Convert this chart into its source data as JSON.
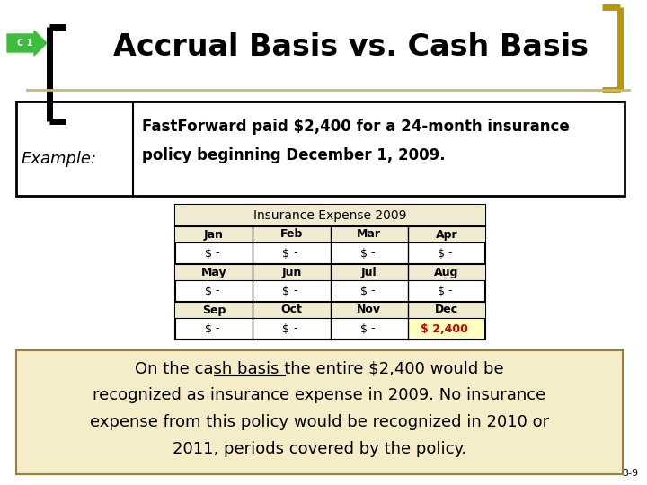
{
  "title": "Accrual Basis vs. Cash Basis",
  "c1_label": "C 1",
  "slide_number": "3-9",
  "example_label": "Example:",
  "example_text_line1": "FastForward paid $2,400 for a 24-month insurance",
  "example_text_line2": "policy beginning December 1, 2009.",
  "table_header": "Insurance Expense 2009",
  "months_row1": [
    "Jan",
    "Feb",
    "Mar",
    "Apr"
  ],
  "months_row2": [
    "May",
    "Jun",
    "Jul",
    "Aug"
  ],
  "months_row3": [
    "Sep",
    "Oct",
    "Nov",
    "Dec"
  ],
  "highlight_value": "$ 2,400",
  "bottom_text_line1": "On the cash basis the entire $2,400 would be",
  "bottom_text_line2": "recognized as insurance expense in 2009. No insurance",
  "bottom_text_line3": "expense from this policy would be recognized in 2010 or",
  "bottom_text_line4": "2011, periods covered by the policy.",
  "bg_color": "#ffffff",
  "bottom_box_bg": "#f5ecc8",
  "table_header_bg": "#f0ead0",
  "gold_color": "#b8960c",
  "green_arrow_color": "#3dbd3d",
  "red_value_color": "#cc0000",
  "tan_line_color": "#c8b870"
}
